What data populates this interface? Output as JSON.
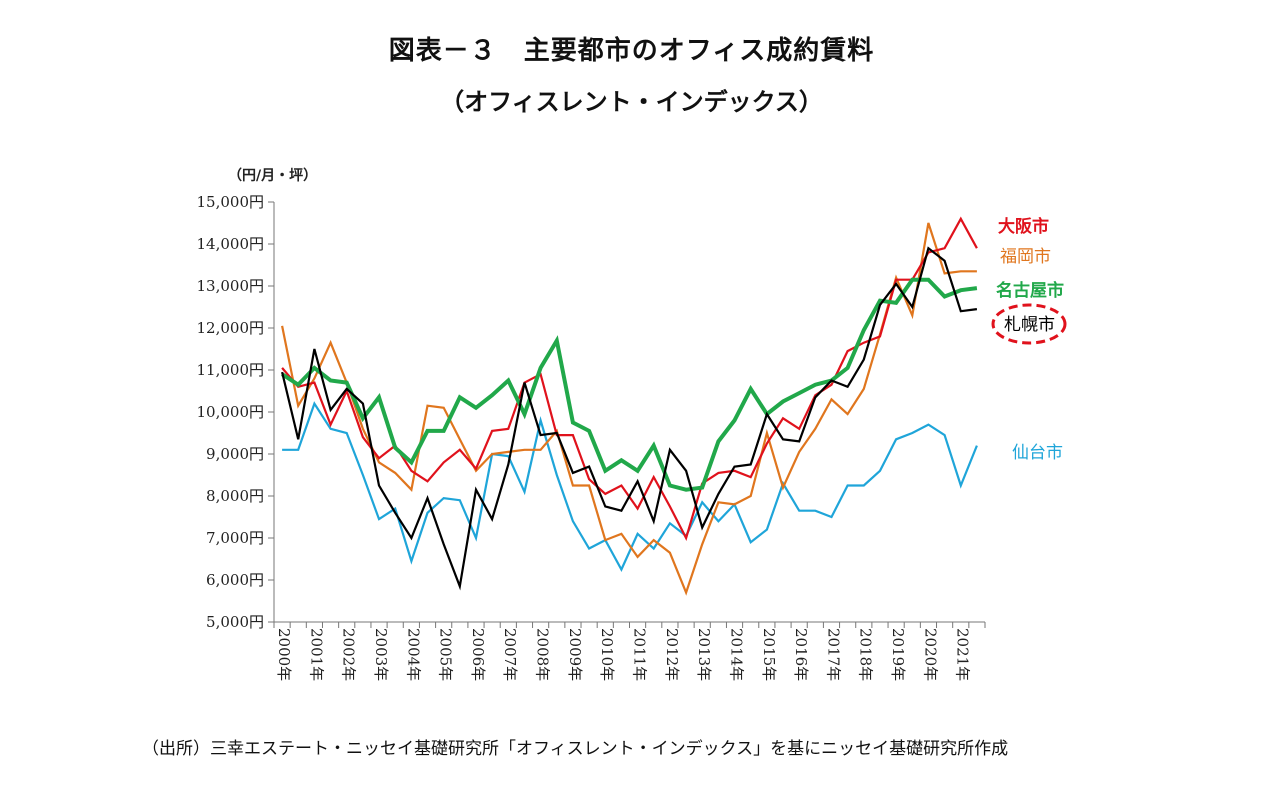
{
  "title_line1": "図表－３　主要都市のオフィス成約賃料",
  "title_line2": "（オフィスレント・インデックス）",
  "source": "（出所）三幸エステート・ニッセイ基礎研究所「オフィスレント・インデックス」を基にニッセイ基礎研究所作成",
  "chart_data": {
    "type": "line",
    "ylabel": "（円/月・坪）",
    "ylim": [
      5000,
      15000
    ],
    "yticks": [
      5000,
      6000,
      7000,
      8000,
      9000,
      10000,
      11000,
      12000,
      13000,
      14000,
      15000
    ],
    "ytick_labels": [
      "5,000円",
      "6,000円",
      "7,000円",
      "8,000円",
      "9,000円",
      "10,000円",
      "11,000円",
      "12,000円",
      "13,000円",
      "14,000円",
      "15,000円"
    ],
    "x_labels": [
      "2000年",
      "2001年",
      "2002年",
      "2003年",
      "2004年",
      "2005年",
      "2006年",
      "2007年",
      "2008年",
      "2009年",
      "2010年",
      "2011年",
      "2012年",
      "2013年",
      "2014年",
      "2015年",
      "2016年",
      "2017年",
      "2018年",
      "2019年",
      "2020年",
      "2021年"
    ],
    "x_start": 2000.0,
    "x_step": 0.5,
    "series": [
      {
        "name": "仙台市",
        "color": "#1FA5D9",
        "width": 2.2,
        "highlight": false,
        "values": [
          9100,
          9100,
          10200,
          9600,
          9500,
          8500,
          7450,
          7700,
          6450,
          7600,
          7950,
          7900,
          7000,
          9000,
          8950,
          8100,
          9800,
          8500,
          7400,
          6750,
          6950,
          6250,
          7100,
          6750,
          7350,
          7050,
          7850,
          7400,
          7800,
          6900,
          7200,
          8300,
          7650,
          7650,
          7500,
          8250,
          8250,
          8600,
          9350,
          9500,
          9700,
          9450,
          8250,
          9200
        ]
      },
      {
        "name": "福岡市",
        "color": "#E0761E",
        "width": 2.2,
        "highlight": false,
        "values": [
          12050,
          10150,
          10800,
          11650,
          10700,
          9600,
          8800,
          8550,
          8150,
          10150,
          10100,
          9350,
          8600,
          9000,
          9050,
          9100,
          9100,
          9550,
          8250,
          8250,
          6950,
          7100,
          6550,
          6950,
          6650,
          5700,
          6850,
          7850,
          7800,
          8000,
          9500,
          8200,
          9050,
          9600,
          10300,
          9950,
          10550,
          11850,
          13200,
          12300,
          14500,
          13300,
          13350,
          13350
        ]
      },
      {
        "name": "大阪市",
        "color": "#E0121C",
        "width": 2.2,
        "highlight": false,
        "values": [
          11050,
          10600,
          10700,
          9700,
          10500,
          9400,
          8900,
          9200,
          8600,
          8350,
          8800,
          9100,
          8650,
          9550,
          9600,
          10700,
          10900,
          9450,
          9450,
          8400,
          8050,
          8250,
          7700,
          8450,
          7750,
          7000,
          8300,
          8550,
          8600,
          8450,
          9250,
          9850,
          9600,
          10400,
          10650,
          11450,
          11650,
          11800,
          13150,
          13150,
          13800,
          13900,
          14600,
          13900
        ]
      },
      {
        "name": "名古屋市",
        "color": "#21A84A",
        "width": 4.0,
        "highlight": false,
        "values": [
          10900,
          10650,
          11050,
          10750,
          10700,
          9850,
          10350,
          9150,
          8800,
          9550,
          9550,
          10350,
          10100,
          10400,
          10750,
          9950,
          11050,
          11700,
          9750,
          9550,
          8600,
          8850,
          8600,
          9200,
          8250,
          8150,
          8200,
          9300,
          9800,
          10550,
          9950,
          10250,
          10450,
          10650,
          10750,
          11050,
          11950,
          12650,
          12600,
          13150,
          13150,
          12750,
          12900,
          12950
        ]
      },
      {
        "name": "札幌市",
        "color": "#000000",
        "width": 2.2,
        "highlight": true,
        "values": [
          10950,
          9350,
          11500,
          10050,
          10550,
          10200,
          8250,
          7600,
          7000,
          7950,
          6850,
          5850,
          8150,
          7450,
          8750,
          10700,
          9450,
          9500,
          8550,
          8700,
          7750,
          7650,
          8350,
          7400,
          9100,
          8600,
          7250,
          8050,
          8700,
          8750,
          9950,
          9350,
          9300,
          10350,
          10750,
          10600,
          11250,
          12550,
          13050,
          12500,
          13900,
          13600,
          12400,
          12450
        ]
      }
    ]
  }
}
